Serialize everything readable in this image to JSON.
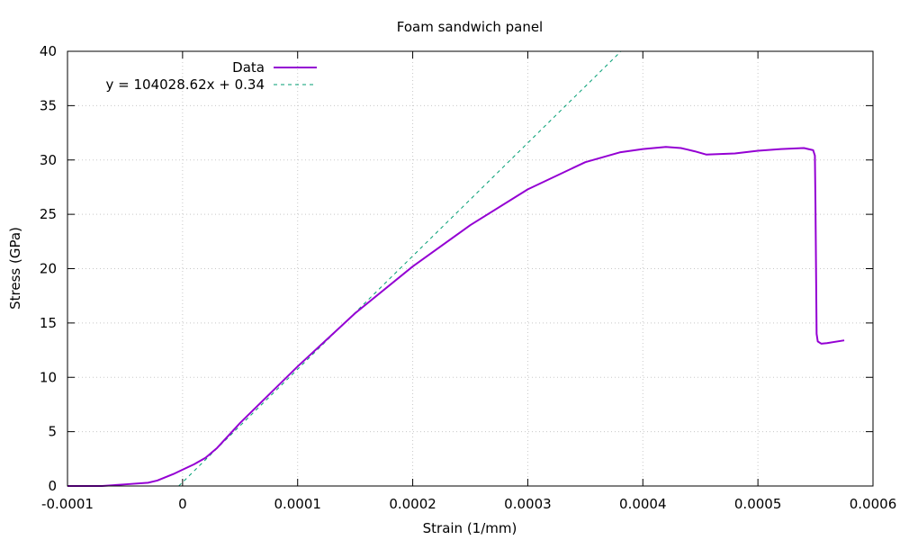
{
  "chart_data": {
    "type": "line",
    "title": "Foam sandwich panel",
    "xlabel": "Strain (1/mm)",
    "ylabel": "Stress (GPa)",
    "xlim": [
      -0.0001,
      0.0006
    ],
    "ylim": [
      0,
      40
    ],
    "x_ticks": [
      -0.0001,
      0,
      0.0001,
      0.0002,
      0.0003,
      0.0004,
      0.0005,
      0.0006
    ],
    "x_tick_labels": [
      "-0.0001",
      "0",
      "0.0001",
      "0.0002",
      "0.0003",
      "0.0004",
      "0.0005",
      "0.0006"
    ],
    "y_ticks": [
      0,
      5,
      10,
      15,
      20,
      25,
      30,
      35,
      40
    ],
    "y_tick_labels": [
      "0",
      "5",
      "10",
      "15",
      "20",
      "25",
      "30",
      "35",
      "40"
    ],
    "grid": true,
    "legend_position": "top-left",
    "series": [
      {
        "name": "Data",
        "style": "solid",
        "color": "#9400d3",
        "x": [
          -0.0001,
          -7e-05,
          -5e-05,
          -3e-05,
          -2.2e-05,
          -1.5e-05,
          -8e-06,
          0,
          1e-05,
          2e-05,
          3e-05,
          5e-05,
          0.0001,
          0.00015,
          0.0002,
          0.00025,
          0.0003,
          0.00035,
          0.00038,
          0.0004,
          0.00042,
          0.000433,
          0.000445,
          0.000455,
          0.00048,
          0.0005,
          0.00052,
          0.00054,
          0.000548,
          0.0005495,
          0.00055,
          0.000551,
          0.000552,
          0.000555,
          0.00056,
          0.000575
        ],
        "y": [
          0,
          0,
          0.15,
          0.3,
          0.5,
          0.8,
          1.1,
          1.5,
          2.0,
          2.6,
          3.5,
          5.8,
          11.0,
          15.9,
          20.2,
          24.0,
          27.3,
          29.8,
          30.7,
          31.0,
          31.2,
          31.1,
          30.8,
          30.5,
          30.6,
          30.85,
          31.0,
          31.1,
          30.9,
          30.4,
          26.0,
          14.0,
          13.3,
          13.1,
          13.15,
          13.4
        ]
      },
      {
        "name": "y = 104028.62x + 0.34",
        "style": "dashed",
        "color": "#009e73",
        "slope": 104028.62,
        "intercept": 0.34,
        "x": [
          -3.3e-06,
          0.000381
        ],
        "y": [
          0,
          40
        ]
      }
    ]
  }
}
